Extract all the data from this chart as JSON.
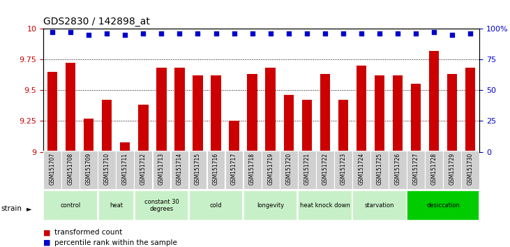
{
  "title": "GDS2830 / 142898_at",
  "samples": [
    "GSM151707",
    "GSM151708",
    "GSM151709",
    "GSM151710",
    "GSM151711",
    "GSM151712",
    "GSM151713",
    "GSM151714",
    "GSM151715",
    "GSM151716",
    "GSM151717",
    "GSM151718",
    "GSM151719",
    "GSM151720",
    "GSM151721",
    "GSM151722",
    "GSM151723",
    "GSM151724",
    "GSM151725",
    "GSM151726",
    "GSM151727",
    "GSM151728",
    "GSM151729",
    "GSM151730"
  ],
  "bar_values": [
    9.65,
    9.72,
    9.27,
    9.42,
    9.08,
    9.38,
    9.68,
    9.68,
    9.62,
    9.62,
    9.25,
    9.63,
    9.68,
    9.46,
    9.42,
    9.63,
    9.42,
    9.7,
    9.62,
    9.62,
    9.55,
    9.82,
    9.63,
    9.68
  ],
  "percentile_values": [
    97,
    97,
    95,
    96,
    95,
    96,
    96,
    96,
    96,
    96,
    96,
    96,
    96,
    96,
    96,
    96,
    96,
    96,
    96,
    96,
    96,
    97,
    95,
    96
  ],
  "bar_color": "#cc0000",
  "dot_color": "#0000cc",
  "ylim_left": [
    9.0,
    10.0
  ],
  "ylim_right": [
    0,
    100
  ],
  "yticks_left": [
    9.0,
    9.25,
    9.5,
    9.75,
    10.0
  ],
  "yticks_right": [
    0,
    25,
    50,
    75,
    100
  ],
  "grid_values": [
    9.25,
    9.5,
    9.75
  ],
  "strain_groups": [
    {
      "label": "control",
      "start": 0,
      "end": 2,
      "color": "#c8f0c8"
    },
    {
      "label": "heat",
      "start": 3,
      "end": 4,
      "color": "#c8f0c8"
    },
    {
      "label": "constant 30\ndegrees",
      "start": 5,
      "end": 7,
      "color": "#c8f0c8"
    },
    {
      "label": "cold",
      "start": 8,
      "end": 10,
      "color": "#c8f0c8"
    },
    {
      "label": "longevity",
      "start": 11,
      "end": 13,
      "color": "#c8f0c8"
    },
    {
      "label": "heat knock down",
      "start": 14,
      "end": 16,
      "color": "#c8f0c8"
    },
    {
      "label": "starvation",
      "start": 17,
      "end": 19,
      "color": "#c8f0c8"
    },
    {
      "label": "desiccation",
      "start": 20,
      "end": 23,
      "color": "#00cc00"
    }
  ],
  "strain_label": "strain",
  "legend_items": [
    {
      "label": "transformed count",
      "color": "#cc0000"
    },
    {
      "label": "percentile rank within the sample",
      "color": "#0000cc"
    }
  ],
  "background_color": "#ffffff",
  "plot_bg_color": "#ffffff",
  "tick_label_bg": "#d0d0d0"
}
